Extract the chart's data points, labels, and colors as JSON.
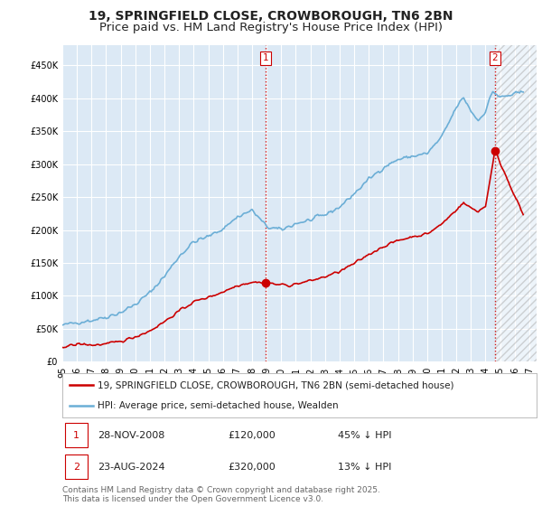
{
  "title_line1": "19, SPRINGFIELD CLOSE, CROWBOROUGH, TN6 2BN",
  "title_line2": "Price paid vs. HM Land Registry's House Price Index (HPI)",
  "ylim": [
    0,
    480000
  ],
  "yticks": [
    0,
    50000,
    100000,
    150000,
    200000,
    250000,
    300000,
    350000,
    400000,
    450000
  ],
  "ytick_labels": [
    "£0",
    "£50K",
    "£100K",
    "£150K",
    "£200K",
    "£250K",
    "£300K",
    "£350K",
    "£400K",
    "£450K"
  ],
  "xlim_start": 1995.0,
  "xlim_end": 2027.5,
  "background_color": "#ffffff",
  "plot_bg_color": "#dce9f5",
  "grid_color": "#ffffff",
  "hpi_color": "#6baed6",
  "price_color": "#cc0000",
  "sale1_date": 2008.91,
  "sale1_price": 120000,
  "sale1_label": "1",
  "sale2_date": 2024.645,
  "sale2_price": 320000,
  "sale2_label": "2",
  "vline_color": "#cc0000",
  "vline_style": ":",
  "legend_entry1": "19, SPRINGFIELD CLOSE, CROWBOROUGH, TN6 2BN (semi-detached house)",
  "legend_entry2": "HPI: Average price, semi-detached house, Wealden",
  "annotation1_date": "28-NOV-2008",
  "annotation1_price": "£120,000",
  "annotation1_pct": "45% ↓ HPI",
  "annotation2_date": "23-AUG-2024",
  "annotation2_price": "£320,000",
  "annotation2_pct": "13% ↓ HPI",
  "footnote": "Contains HM Land Registry data © Crown copyright and database right 2025.\nThis data is licensed under the Open Government Licence v3.0.",
  "title_fontsize": 10,
  "tick_fontsize": 7,
  "legend_fontsize": 7.5,
  "annotation_fontsize": 8,
  "footnote_fontsize": 6.5
}
